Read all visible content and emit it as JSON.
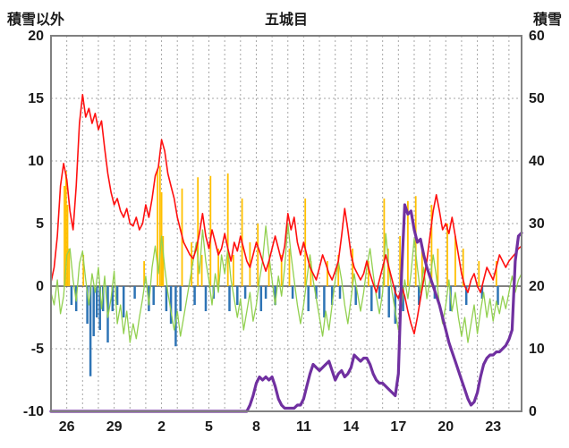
{
  "header": {
    "left_axis_title": "積雪以外",
    "title": "五城目",
    "right_axis_title": "積雪"
  },
  "chart_data": {
    "type": "line",
    "title": "五城目",
    "legend": "none",
    "grid": true,
    "grid_color": "#a6a6a6",
    "zero_line_color": "#595959",
    "border_color": "#808080",
    "text_color": "#1a1a1a",
    "left_axis": {
      "label": "積雪以外",
      "min": -10,
      "max": 20,
      "ticks": [
        20,
        15,
        10,
        5,
        0,
        -5,
        -10
      ]
    },
    "right_axis": {
      "label": "積雪",
      "min": 0,
      "max": 60,
      "ticks": [
        60,
        50,
        40,
        30,
        20,
        10,
        0
      ]
    },
    "x_axis": {
      "min": 0,
      "max": 29.8,
      "grid_start": 1,
      "grid_end": 29,
      "grid_step": 1,
      "tick_positions": [
        1,
        4,
        7,
        10,
        13,
        16,
        19,
        22,
        25,
        28
      ],
      "tick_labels": [
        "26",
        "29",
        "2",
        "5",
        "8",
        "11",
        "14",
        "17",
        "20",
        "23"
      ]
    },
    "series": [
      {
        "name": "orange-bars",
        "type": "bar",
        "axis": "left",
        "color": "#ffc000",
        "width": 1.8,
        "points": [
          [
            0.85,
            8.0
          ],
          [
            0.95,
            9.2
          ],
          [
            1.05,
            6.5
          ],
          [
            1.15,
            3.0
          ],
          [
            2.05,
            2.5
          ],
          [
            5.9,
            2.0
          ],
          [
            6.75,
            9.3
          ],
          [
            6.9,
            9.6
          ],
          [
            7.0,
            7.5
          ],
          [
            7.1,
            4.0
          ],
          [
            8.3,
            7.8
          ],
          [
            8.9,
            3.5
          ],
          [
            9.3,
            8.7
          ],
          [
            9.55,
            2.5
          ],
          [
            10.1,
            8.8
          ],
          [
            10.6,
            3.0
          ],
          [
            11.2,
            9.0
          ],
          [
            11.55,
            2.5
          ],
          [
            12.1,
            7.0
          ],
          [
            12.6,
            3.5
          ],
          [
            13.1,
            5.0
          ],
          [
            13.8,
            2.0
          ],
          [
            14.6,
            2.5
          ],
          [
            15.1,
            3.0
          ],
          [
            16.1,
            7.0
          ],
          [
            16.45,
            2.0
          ],
          [
            17.5,
            2.0
          ],
          [
            18.2,
            2.5
          ],
          [
            19.1,
            3.0
          ],
          [
            20.1,
            2.0
          ],
          [
            21.1,
            7.0
          ],
          [
            21.35,
            3.0
          ],
          [
            22.1,
            4.0
          ],
          [
            22.6,
            6.8
          ],
          [
            23.1,
            7.2
          ],
          [
            23.5,
            3.0
          ],
          [
            24.1,
            6.5
          ],
          [
            24.5,
            3.0
          ],
          [
            25.1,
            5.0
          ],
          [
            25.6,
            4.0
          ],
          [
            26.1,
            3.0
          ],
          [
            27.1,
            2.0
          ],
          [
            28.2,
            2.0
          ]
        ]
      },
      {
        "name": "blue-bars",
        "type": "bar",
        "axis": "left",
        "color": "#2e74b5",
        "width": 2.5,
        "points": [
          [
            1.3,
            -1.5
          ],
          [
            1.6,
            -2.0
          ],
          [
            2.3,
            -3.0
          ],
          [
            2.5,
            -7.2
          ],
          [
            2.7,
            -4.0
          ],
          [
            2.9,
            -2.5
          ],
          [
            3.1,
            -3.5
          ],
          [
            3.3,
            -2.0
          ],
          [
            3.6,
            -4.5
          ],
          [
            3.9,
            -2.0
          ],
          [
            4.2,
            -1.5
          ],
          [
            4.6,
            -2.5
          ],
          [
            5.3,
            -1.0
          ],
          [
            6.2,
            -2.0
          ],
          [
            6.5,
            -1.5
          ],
          [
            7.3,
            -2.0
          ],
          [
            7.6,
            -3.0
          ],
          [
            7.9,
            -4.8
          ],
          [
            8.2,
            -2.0
          ],
          [
            9.1,
            -1.5
          ],
          [
            9.8,
            -2.0
          ],
          [
            10.3,
            -1.0
          ],
          [
            11.3,
            -2.0
          ],
          [
            11.8,
            -1.5
          ],
          [
            12.3,
            -1.0
          ],
          [
            13.3,
            -2.0
          ],
          [
            13.6,
            -1.0
          ],
          [
            14.2,
            -1.5
          ],
          [
            15.3,
            -1.0
          ],
          [
            16.3,
            -2.0
          ],
          [
            16.8,
            -1.0
          ],
          [
            17.3,
            -2.5
          ],
          [
            17.8,
            -1.5
          ],
          [
            18.3,
            -1.0
          ],
          [
            19.3,
            -1.5
          ],
          [
            20.3,
            -2.0
          ],
          [
            20.8,
            -1.0
          ],
          [
            21.4,
            -2.5
          ],
          [
            21.8,
            -3.0
          ],
          [
            22.3,
            -2.0
          ],
          [
            23.3,
            -1.5
          ],
          [
            24.3,
            -1.0
          ],
          [
            25.3,
            -2.0
          ],
          [
            26.3,
            -1.5
          ],
          [
            27.3,
            -1.0
          ],
          [
            28.3,
            -1.5
          ]
        ]
      },
      {
        "name": "green-line",
        "type": "line",
        "axis": "left",
        "color": "#92d050",
        "width": 1.3,
        "x0": 0,
        "dx": 0.2,
        "values": [
          -0.5,
          -1.5,
          0.5,
          -2.2,
          -0.8,
          2.5,
          3,
          0.5,
          -1.2,
          1.8,
          2.8,
          0.5,
          -1.5,
          1,
          -0.5,
          1.5,
          -1.8,
          0.8,
          -2.5,
          -1,
          1.2,
          -3,
          -1.5,
          -3.8,
          -2,
          -4.5,
          -3,
          -4.2,
          -2.5,
          -1,
          0.8,
          -1.5,
          1.5,
          3.2,
          1,
          4,
          1.5,
          -0.5,
          -2,
          -3.5,
          -2,
          -4,
          -2.5,
          -1,
          0.5,
          2,
          3.5,
          1,
          4.5,
          2,
          0.5,
          -1.5,
          1,
          -0.5,
          2.5,
          1,
          3,
          0.5,
          -1,
          -2.5,
          -1,
          -3.5,
          -2,
          -0.5,
          -2.8,
          -1.5,
          0.5,
          2,
          4.8,
          2.5,
          0.5,
          -1.5,
          0.8,
          -0.8,
          1.5,
          5,
          2.5,
          0.5,
          -1.5,
          -3,
          -1.5,
          0.5,
          2.5,
          0.5,
          -1,
          -2.5,
          -4,
          -2,
          -3.5,
          -1.5,
          0.5,
          2,
          0.5,
          -1.5,
          -3,
          -1,
          1,
          -0.5,
          -2,
          -0.5,
          1.5,
          3,
          1,
          -0.8,
          -2.2,
          -0.5,
          4.2,
          1.5,
          -0.5,
          -2,
          -3.5,
          -1.5,
          0.5,
          -1,
          1,
          3.8,
          1.5,
          -0.5,
          1.5,
          -1,
          0.5,
          2.5,
          0.8,
          -1.5,
          -3,
          -1.5,
          0.5,
          -2,
          -0.5,
          -2.5,
          -4,
          -2.5,
          -4.5,
          -3,
          -1.5,
          -3.8,
          -2,
          -0.5,
          -2.5,
          -1,
          -2.8,
          -1.2,
          -2.2,
          -0.8,
          -1.8,
          -0.5,
          0.8,
          -0.5,
          0.5,
          1
        ]
      },
      {
        "name": "red-line",
        "type": "line",
        "axis": "left",
        "color": "#ff1010",
        "width": 1.6,
        "x0": 0,
        "dx": 0.2,
        "values": [
          0.3,
          1.5,
          4,
          8,
          9.8,
          8.5,
          6,
          4.5,
          8,
          13,
          15.3,
          13.5,
          14.2,
          13,
          13.8,
          12.5,
          13.2,
          11,
          9,
          7.5,
          6.5,
          7,
          6,
          5.5,
          6.2,
          5,
          4.8,
          5.5,
          4.5,
          5,
          6.5,
          5.5,
          7,
          8.8,
          9.5,
          11.7,
          10.8,
          9,
          8,
          7,
          5.5,
          4.5,
          3.5,
          3,
          2.5,
          2.2,
          3,
          4.2,
          5.8,
          4,
          3,
          4.5,
          3.5,
          2.5,
          3,
          4.2,
          3,
          2,
          3.5,
          2.8,
          4,
          3,
          2,
          1.5,
          2.5,
          3.5,
          2.8,
          2,
          1.2,
          2,
          3,
          4,
          3,
          2,
          3.2,
          5.8,
          4.5,
          5.5,
          3.5,
          2.5,
          3.5,
          2.5,
          1.5,
          1,
          0.5,
          1.5,
          2.5,
          1.8,
          1,
          0.5,
          1.2,
          2,
          4,
          6.2,
          4.5,
          2.5,
          1.5,
          1,
          0.5,
          1,
          2,
          1,
          0.2,
          -0.5,
          0.5,
          1.5,
          2.5,
          1.5,
          0.5,
          -0.5,
          -1,
          0,
          -0.8,
          -2,
          -3,
          -3.8,
          -2.5,
          -1,
          0.5,
          2,
          4,
          6,
          7.3,
          6,
          4.5,
          5,
          4.2,
          5.5,
          4,
          2.5,
          1,
          0,
          -0.5,
          0.5,
          1,
          0,
          -0.5,
          0.5,
          1.5,
          1,
          0.5,
          1.5,
          2.5,
          2,
          1.5,
          2,
          2.3,
          2.6,
          3,
          3.2
        ]
      },
      {
        "name": "purple-line",
        "type": "line",
        "axis": "right",
        "color": "#7030a0",
        "width": 3.2,
        "x0": 0,
        "dx": 0.2,
        "values": [
          0,
          0,
          0,
          0,
          0,
          0,
          0,
          0,
          0,
          0,
          0,
          0,
          0,
          0,
          0,
          0,
          0,
          0,
          0,
          0,
          0,
          0,
          0,
          0,
          0,
          0,
          0,
          0,
          0,
          0,
          0,
          0,
          0,
          0,
          0,
          0,
          0,
          0,
          0,
          0,
          0,
          0,
          0,
          0,
          0,
          0,
          0,
          0,
          0,
          0,
          0,
          0,
          0,
          0,
          0,
          0,
          0,
          0,
          0,
          0,
          0,
          0,
          0,
          1,
          2.5,
          4.5,
          5.5,
          5,
          5.5,
          5,
          5.5,
          4,
          2,
          1,
          0.5,
          0.5,
          0.5,
          0.5,
          1,
          1,
          2,
          4,
          6,
          7.5,
          7,
          6.5,
          7,
          7.5,
          8,
          6.5,
          5,
          6,
          6.5,
          5.5,
          6,
          7,
          9,
          8.5,
          8,
          8.5,
          8.5,
          7.5,
          6,
          5,
          4.5,
          4.5,
          4,
          3.5,
          3,
          2.5,
          6,
          22,
          33,
          31.5,
          32,
          29,
          27,
          27.5,
          25,
          23,
          21.5,
          20,
          18.5,
          17,
          15,
          13,
          11,
          9.5,
          8,
          6.5,
          5,
          3.5,
          2,
          1,
          1.5,
          3,
          5.5,
          7.5,
          8.5,
          9,
          9,
          9.5,
          9.5,
          10,
          10.5,
          11.5,
          13,
          24,
          28,
          28.5
        ]
      }
    ]
  }
}
